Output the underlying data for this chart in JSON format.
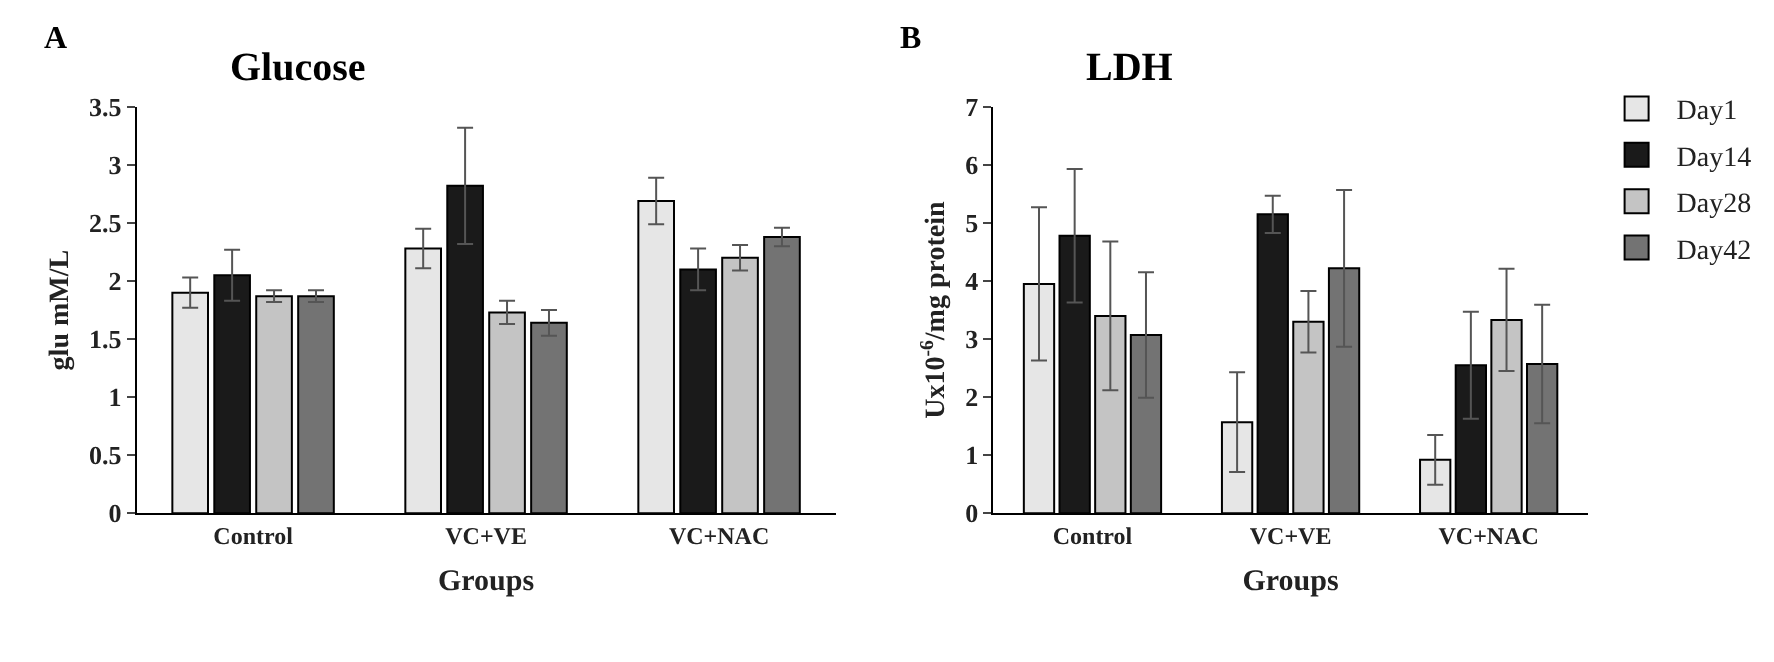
{
  "chart_data": [
    {
      "type": "bar",
      "title": "Glucose",
      "xlabel": "Groups",
      "ylabel": "glu mM/L",
      "annotations": [
        "A"
      ],
      "categories": [
        "Control",
        "VC+VE",
        "VC+NAC"
      ],
      "series": [
        {
          "color": "#e6e6e6",
          "values": [
            1.9,
            2.28,
            2.69
          ],
          "errors": [
            0.13,
            0.17,
            0.2
          ]
        },
        {
          "color": "#1a1a1a",
          "values": [
            2.05,
            2.82,
            2.1
          ],
          "errors": [
            0.22,
            0.5,
            0.18
          ]
        },
        {
          "color": "#c4c4c4",
          "values": [
            1.87,
            1.73,
            2.2
          ],
          "errors": [
            0.05,
            0.1,
            0.11
          ]
        },
        {
          "color": "#737373",
          "values": [
            1.87,
            1.64,
            2.38
          ],
          "errors": [
            0.05,
            0.11,
            0.08
          ]
        }
      ],
      "ylim": [
        0,
        3.5
      ],
      "yticks": [
        0,
        0.5,
        1,
        1.5,
        2,
        2.5,
        3,
        3.5
      ],
      "legend": false
    },
    {
      "type": "bar",
      "title": "LDH",
      "xlabel": "Groups",
      "ylabel": "Ux10$^{-6}$/mg protein",
      "annotations": [
        "B"
      ],
      "categories": [
        "Control",
        "VC+VE",
        "VC+NAC"
      ],
      "series": [
        {
          "name": "Day1",
          "color": "#e6e6e6",
          "values": [
            3.95,
            1.57,
            0.92
          ],
          "errors": [
            1.32,
            0.86,
            0.43
          ]
        },
        {
          "name": "Day14",
          "color": "#1a1a1a",
          "values": [
            4.78,
            5.15,
            2.55
          ],
          "errors": [
            1.15,
            0.32,
            0.92
          ]
        },
        {
          "name": "Day28",
          "color": "#c4c4c4",
          "values": [
            3.4,
            3.3,
            3.33
          ],
          "errors": [
            1.28,
            0.53,
            0.88
          ]
        },
        {
          "name": "Day42",
          "color": "#737373",
          "values": [
            3.07,
            4.22,
            2.57
          ],
          "errors": [
            1.08,
            1.35,
            1.02
          ]
        }
      ],
      "ylim": [
        0,
        7
      ],
      "yticks": [
        0,
        1,
        2,
        3,
        4,
        5,
        6,
        7
      ],
      "legend": "top right"
    }
  ]
}
